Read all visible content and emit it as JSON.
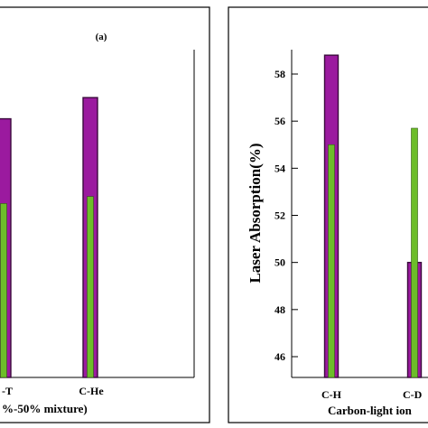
{
  "colors": {
    "purple": "#9b1a9f",
    "green": "#6dbd2a",
    "dark_edge": "#3a0a3c",
    "frame": "#000000"
  },
  "chart_data": [
    {
      "type": "bar",
      "panel_label": "(a)",
      "xlabel": "%-50% mixture)",
      "categories": [
        "C-T",
        "C-He"
      ],
      "category_labels_visible": [
        "-T",
        "C-He"
      ],
      "series": [
        {
          "values": [
            56.1,
            57.0
          ]
        },
        {
          "values": [
            52.5,
            52.8
          ]
        }
      ],
      "ylim": [
        45.5,
        58.9
      ],
      "ylabel": "",
      "grid": false
    },
    {
      "type": "bar",
      "xlabel": "Carbon-light ion",
      "ylabel": "Laser Absorption(%)",
      "categories": [
        "C-H",
        "C-D"
      ],
      "category_labels_visible": [
        "C-H",
        "C-D"
      ],
      "series": [
        {
          "values": [
            58.8,
            50.0
          ]
        },
        {
          "values": [
            55.0,
            55.7
          ]
        }
      ],
      "yticks": [
        46,
        48,
        50,
        52,
        54,
        56,
        58
      ],
      "ylim": [
        45.5,
        58.9
      ],
      "grid": false
    }
  ]
}
